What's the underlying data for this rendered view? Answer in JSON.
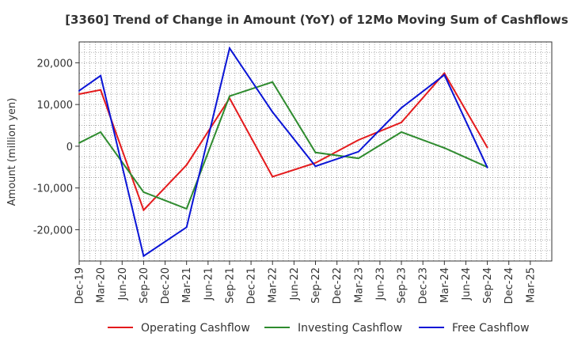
{
  "chart_data": {
    "type": "line",
    "title": "[3360]  Trend of Change in Amount (YoY) of 12Mo Moving Sum of Cashflows",
    "xlabel": "",
    "ylabel": "Amount (million yen)",
    "ylim": [
      -27500,
      25000
    ],
    "yticks": [
      20000,
      10000,
      0,
      -10000,
      -20000
    ],
    "ytick_labels": [
      "20,000",
      "10,000",
      "0",
      "-10,000",
      "-20,000"
    ],
    "categories": [
      "Dec-19",
      "Mar-20",
      "Jun-20",
      "Sep-20",
      "Dec-20",
      "Mar-21",
      "Jun-21",
      "Sep-21",
      "Dec-21",
      "Mar-22",
      "Jun-22",
      "Sep-22",
      "Dec-22",
      "Mar-23",
      "Jun-23",
      "Sep-23",
      "Dec-23",
      "Mar-24",
      "Jun-24",
      "Sep-24",
      "Dec-24",
      "Mar-25"
    ],
    "grid": true,
    "legend": "bottom",
    "series": [
      {
        "name": "Operating Cashflow",
        "color": "#e41a1c",
        "values": [
          12500,
          13500,
          null,
          -15300,
          null,
          -4500,
          null,
          11500,
          null,
          -7300,
          null,
          -4000,
          null,
          1500,
          null,
          5700,
          null,
          17500,
          null,
          -300,
          null,
          null
        ]
      },
      {
        "name": "Investing Cashflow",
        "color": "#2e8b2e",
        "values": [
          800,
          3400,
          null,
          -11000,
          null,
          -15000,
          null,
          12000,
          null,
          15400,
          null,
          -1500,
          null,
          -2900,
          null,
          3400,
          null,
          -400,
          null,
          -5000,
          null,
          null
        ]
      },
      {
        "name": "Free Cashflow",
        "color": "#0a14d6",
        "values": [
          13300,
          16900,
          null,
          -26300,
          null,
          -19400,
          null,
          23500,
          null,
          8200,
          null,
          -4800,
          null,
          -1300,
          null,
          9200,
          null,
          17100,
          null,
          -5100,
          null,
          null
        ]
      }
    ]
  }
}
